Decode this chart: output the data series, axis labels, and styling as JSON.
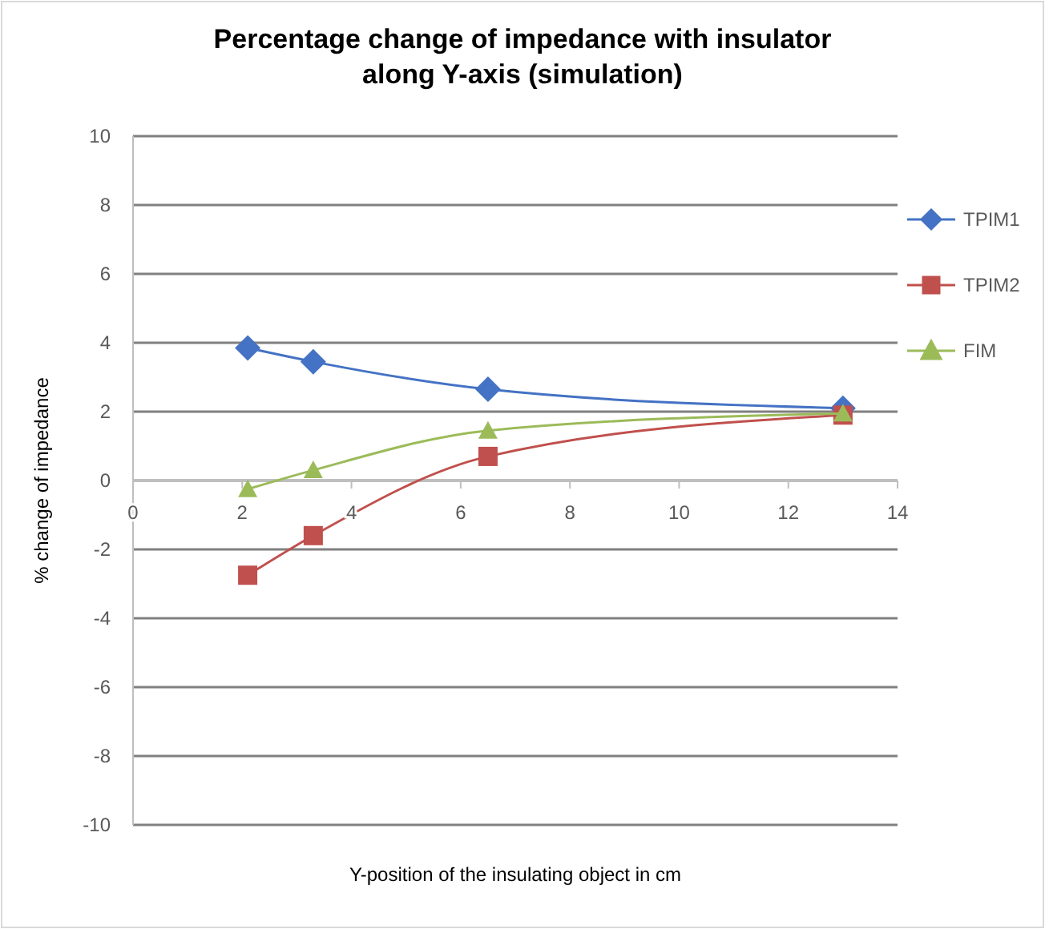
{
  "chart_data": {
    "type": "line",
    "title": "Percentage change of impedance with insulator along Y-axis (simulation)",
    "xlabel": "Y-position of the  insulating object in cm",
    "ylabel": "% change of impedance",
    "x": [
      2.1,
      3.3,
      6.5,
      13
    ],
    "series": [
      {
        "name": "TPIM1",
        "color": "#4472c4",
        "marker": "diamond",
        "values": [
          3.85,
          3.45,
          2.65,
          2.1
        ]
      },
      {
        "name": "TPIM2",
        "color": "#c0504d",
        "marker": "square",
        "values": [
          -2.75,
          -1.6,
          0.7,
          1.9
        ]
      },
      {
        "name": "FIM",
        "color": "#9bbb59",
        "marker": "triangle",
        "values": [
          -0.25,
          0.3,
          1.45,
          1.95
        ]
      }
    ],
    "xlim": [
      0,
      14
    ],
    "xticks": [
      0,
      2,
      4,
      6,
      8,
      10,
      12,
      14
    ],
    "ylim": [
      -10,
      10
    ],
    "yticks": [
      -10,
      -8,
      -6,
      -4,
      -2,
      0,
      2,
      4,
      6,
      8,
      10
    ],
    "grid": "y",
    "legend": "top right",
    "line_style": "solid"
  }
}
